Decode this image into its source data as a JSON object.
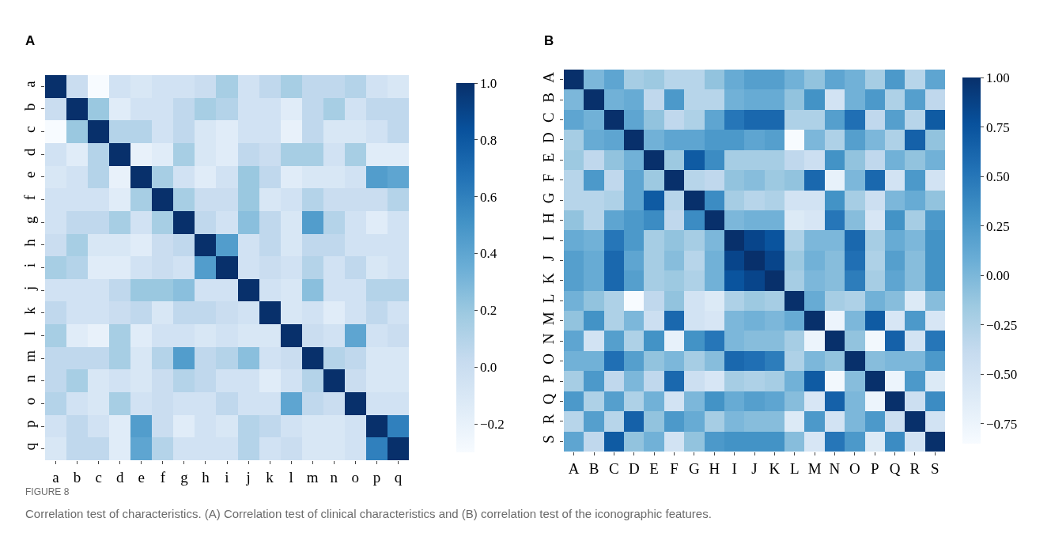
{
  "chart_data": [
    {
      "type": "heatmap",
      "title": "A",
      "categories": [
        "a",
        "b",
        "c",
        "d",
        "e",
        "f",
        "g",
        "h",
        "i",
        "j",
        "k",
        "l",
        "m",
        "n",
        "o",
        "p",
        "q"
      ],
      "y_categories": [
        "a",
        "b",
        "c",
        "d",
        "e",
        "f",
        "g",
        "h",
        "i",
        "j",
        "k",
        "l",
        "m",
        "n",
        "o",
        "p",
        "q"
      ],
      "cells": [
        [
          1,
          0.0,
          -0.3,
          -0.05,
          -0.1,
          -0.05,
          -0.05,
          0.0,
          0.15,
          -0.05,
          0.05,
          0.15,
          0.05,
          0.05,
          0.1,
          -0.05,
          -0.1
        ],
        [
          0.0,
          1,
          0.2,
          -0.15,
          -0.05,
          -0.05,
          0.05,
          0.15,
          0.1,
          -0.05,
          -0.05,
          -0.15,
          0.05,
          0.15,
          -0.05,
          0.05,
          0.05
        ],
        [
          -0.3,
          0.2,
          1,
          0.1,
          0.1,
          -0.05,
          0.05,
          -0.1,
          -0.15,
          -0.05,
          -0.05,
          -0.2,
          0.05,
          -0.1,
          -0.1,
          -0.05,
          0.05
        ],
        [
          -0.05,
          -0.15,
          0.1,
          1,
          -0.2,
          -0.15,
          0.15,
          -0.1,
          -0.15,
          0.05,
          0.0,
          0.15,
          0.15,
          -0.05,
          0.15,
          -0.15,
          -0.15
        ],
        [
          -0.1,
          -0.05,
          0.1,
          -0.2,
          1,
          0.15,
          -0.05,
          -0.15,
          -0.05,
          0.2,
          0.05,
          -0.15,
          -0.1,
          -0.1,
          -0.05,
          0.45,
          0.4
        ],
        [
          -0.05,
          -0.05,
          -0.05,
          -0.15,
          0.15,
          1,
          0.15,
          0.0,
          0.0,
          0.2,
          -0.1,
          -0.05,
          0.1,
          0.0,
          0.0,
          0.0,
          0.1
        ],
        [
          -0.05,
          0.05,
          0.05,
          0.15,
          -0.05,
          0.15,
          1,
          0.05,
          -0.05,
          0.25,
          0.05,
          -0.1,
          0.45,
          0.1,
          -0.05,
          -0.15,
          -0.05
        ],
        [
          0.0,
          0.15,
          -0.1,
          -0.1,
          -0.15,
          0.0,
          0.05,
          1,
          0.45,
          -0.05,
          0.05,
          -0.1,
          0.05,
          0.05,
          -0.05,
          -0.05,
          -0.05
        ],
        [
          0.15,
          0.1,
          -0.15,
          -0.15,
          -0.05,
          0.0,
          -0.05,
          0.45,
          1,
          -0.05,
          0.0,
          -0.05,
          0.1,
          -0.05,
          0.05,
          -0.1,
          -0.05
        ],
        [
          -0.05,
          -0.05,
          -0.05,
          0.05,
          0.2,
          0.2,
          0.25,
          -0.05,
          -0.05,
          1,
          -0.05,
          -0.1,
          0.25,
          -0.05,
          -0.05,
          0.1,
          0.1
        ],
        [
          0.05,
          -0.05,
          -0.05,
          0.0,
          0.05,
          -0.1,
          0.05,
          0.05,
          0.0,
          -0.05,
          1,
          -0.1,
          -0.05,
          -0.15,
          -0.05,
          0.05,
          -0.05
        ],
        [
          0.15,
          -0.15,
          -0.2,
          0.15,
          -0.15,
          -0.05,
          -0.05,
          -0.1,
          -0.05,
          -0.1,
          -0.1,
          1,
          0.0,
          -0.05,
          0.4,
          -0.05,
          0.0
        ],
        [
          0.05,
          0.05,
          0.05,
          0.15,
          -0.1,
          0.1,
          0.45,
          0.05,
          0.1,
          0.25,
          -0.05,
          0.0,
          1,
          0.1,
          0.05,
          -0.1,
          -0.1
        ],
        [
          0.05,
          0.15,
          -0.1,
          -0.05,
          -0.1,
          0.0,
          0.1,
          0.05,
          -0.05,
          -0.05,
          -0.15,
          -0.05,
          0.1,
          1,
          0.0,
          -0.1,
          -0.1
        ],
        [
          0.1,
          -0.05,
          -0.1,
          0.15,
          -0.05,
          0.0,
          -0.05,
          -0.05,
          0.05,
          -0.05,
          -0.05,
          0.4,
          0.05,
          0.0,
          1,
          -0.05,
          -0.05
        ],
        [
          -0.05,
          0.05,
          -0.05,
          -0.15,
          0.45,
          0.0,
          -0.15,
          -0.05,
          -0.1,
          0.1,
          0.05,
          -0.05,
          -0.1,
          -0.1,
          -0.05,
          1,
          0.6
        ],
        [
          -0.1,
          0.05,
          0.05,
          -0.15,
          0.4,
          0.1,
          -0.05,
          -0.05,
          -0.05,
          0.1,
          -0.05,
          0.0,
          -0.1,
          -0.1,
          -0.05,
          0.6,
          1
        ]
      ],
      "clim": [
        -0.3,
        1.0
      ],
      "cticks": [
        {
          "value": -0.2,
          "label": "−0.2"
        },
        {
          "value": 0.0,
          "label": "0.0"
        },
        {
          "value": 0.2,
          "label": "0.2"
        },
        {
          "value": 0.4,
          "label": "0.4"
        },
        {
          "value": 0.6,
          "label": "0.6"
        },
        {
          "value": 0.8,
          "label": "0.8"
        },
        {
          "value": 1.0,
          "label": "1.0"
        }
      ],
      "annotations": [
        "FIGURE 8",
        "Correlation test of characteristics. (A) Correlation test of clinical characteristics and (B) correlation test of the iconographic features."
      ]
    },
    {
      "type": "heatmap",
      "title": "B",
      "categories": [
        "A",
        "B",
        "C",
        "D",
        "E",
        "F",
        "G",
        "H",
        "I",
        "J",
        "K",
        "L",
        "M",
        "N",
        "O",
        "P",
        "Q",
        "R",
        "S"
      ],
      "y_categories": [
        "A",
        "B",
        "C",
        "D",
        "E",
        "F",
        "G",
        "H",
        "I",
        "J",
        "K",
        "L",
        "M",
        "N",
        "O",
        "P",
        "Q",
        "R",
        "S"
      ],
      "cells": [
        [
          1,
          0.0,
          0.15,
          -0.2,
          -0.15,
          -0.3,
          -0.3,
          -0.1,
          0.1,
          0.2,
          0.2,
          0.05,
          -0.1,
          0.15,
          0.05,
          -0.2,
          0.25,
          -0.3,
          0.15
        ],
        [
          0.0,
          1,
          0.05,
          0.1,
          -0.35,
          0.25,
          -0.3,
          -0.3,
          0.05,
          0.1,
          0.1,
          -0.1,
          0.3,
          -0.5,
          0.05,
          0.25,
          -0.25,
          0.2,
          -0.35
        ],
        [
          0.15,
          0.05,
          1,
          0.15,
          -0.1,
          -0.35,
          -0.25,
          0.15,
          0.5,
          0.6,
          0.6,
          -0.25,
          -0.25,
          0.2,
          0.55,
          -0.35,
          0.2,
          -0.3,
          0.7
        ],
        [
          -0.2,
          0.1,
          0.15,
          1,
          0.05,
          0.15,
          0.15,
          0.25,
          0.25,
          0.15,
          0.2,
          -0.85,
          0.0,
          -0.25,
          0.2,
          0.0,
          -0.25,
          0.65,
          -0.1
        ],
        [
          -0.15,
          -0.35,
          -0.1,
          0.05,
          1,
          -0.15,
          0.7,
          0.35,
          -0.2,
          -0.2,
          -0.2,
          -0.35,
          -0.45,
          0.3,
          -0.1,
          -0.35,
          0.05,
          -0.1,
          0.05
        ],
        [
          -0.3,
          0.25,
          -0.35,
          0.15,
          -0.15,
          1,
          -0.3,
          -0.35,
          -0.1,
          -0.05,
          -0.15,
          -0.1,
          0.6,
          -0.7,
          0.0,
          0.6,
          -0.5,
          0.25,
          -0.5
        ],
        [
          -0.3,
          -0.3,
          -0.25,
          0.15,
          0.7,
          -0.3,
          1,
          0.35,
          -0.2,
          -0.3,
          -0.25,
          -0.5,
          -0.5,
          0.3,
          -0.2,
          -0.45,
          0.0,
          0.1,
          -0.1
        ],
        [
          -0.1,
          -0.3,
          0.15,
          0.25,
          0.35,
          -0.35,
          0.35,
          1,
          0.0,
          0.05,
          0.05,
          -0.6,
          -0.55,
          0.5,
          -0.05,
          -0.55,
          0.3,
          -0.2,
          0.25
        ],
        [
          0.1,
          0.05,
          0.5,
          0.25,
          -0.2,
          -0.1,
          -0.2,
          0.0,
          1,
          0.85,
          0.75,
          -0.25,
          0.0,
          0.0,
          0.6,
          -0.2,
          0.1,
          0.0,
          0.3
        ],
        [
          0.2,
          0.1,
          0.6,
          0.15,
          -0.2,
          -0.05,
          -0.3,
          0.05,
          0.85,
          1,
          0.85,
          -0.15,
          0.05,
          -0.05,
          0.55,
          -0.25,
          0.2,
          -0.05,
          0.3
        ],
        [
          0.2,
          0.1,
          0.6,
          0.2,
          -0.2,
          -0.15,
          -0.25,
          0.05,
          0.75,
          0.85,
          1,
          -0.2,
          0.0,
          -0.05,
          0.45,
          -0.2,
          0.15,
          -0.05,
          0.3
        ],
        [
          0.05,
          -0.1,
          -0.25,
          -0.85,
          -0.35,
          -0.1,
          -0.5,
          -0.6,
          -0.25,
          -0.15,
          -0.2,
          1,
          0.1,
          -0.2,
          -0.25,
          0.05,
          -0.05,
          -0.6,
          -0.05
        ],
        [
          -0.1,
          0.3,
          -0.25,
          0.0,
          -0.45,
          0.6,
          -0.5,
          -0.55,
          0.0,
          0.05,
          0.0,
          0.1,
          1,
          -0.75,
          0.0,
          0.7,
          -0.55,
          0.25,
          -0.55
        ],
        [
          0.15,
          -0.5,
          0.2,
          -0.25,
          0.3,
          -0.7,
          0.3,
          0.5,
          0.0,
          -0.05,
          -0.05,
          -0.2,
          -0.75,
          1,
          -0.1,
          -0.8,
          0.65,
          -0.5,
          0.5
        ],
        [
          0.05,
          0.05,
          0.55,
          0.2,
          -0.1,
          0.0,
          -0.2,
          -0.05,
          0.6,
          0.55,
          0.45,
          -0.25,
          0.0,
          -0.1,
          1,
          -0.05,
          0.0,
          0.0,
          0.25
        ],
        [
          -0.2,
          0.25,
          -0.35,
          0.0,
          -0.35,
          0.6,
          -0.45,
          -0.55,
          -0.2,
          -0.25,
          -0.2,
          0.05,
          0.7,
          -0.8,
          -0.05,
          1,
          -0.75,
          0.25,
          -0.6
        ],
        [
          0.25,
          -0.25,
          0.2,
          -0.25,
          0.05,
          -0.5,
          0.0,
          0.3,
          0.1,
          0.2,
          0.15,
          -0.05,
          -0.55,
          0.65,
          0.0,
          -0.75,
          1,
          -0.45,
          0.35
        ],
        [
          -0.3,
          0.2,
          -0.3,
          0.65,
          -0.1,
          0.25,
          0.1,
          -0.2,
          0.0,
          -0.05,
          -0.05,
          -0.6,
          0.25,
          -0.5,
          0.0,
          0.25,
          -0.45,
          1,
          -0.5
        ],
        [
          0.15,
          -0.35,
          0.7,
          -0.1,
          0.05,
          -0.5,
          -0.1,
          0.25,
          0.3,
          0.3,
          0.3,
          -0.05,
          -0.55,
          0.5,
          0.25,
          -0.6,
          0.35,
          -0.5,
          1
        ]
      ],
      "clim": [
        -0.85,
        1.0
      ],
      "cticks": [
        {
          "value": -0.75,
          "label": "−0.75"
        },
        {
          "value": -0.5,
          "label": "−0.50"
        },
        {
          "value": -0.25,
          "label": "−0.25"
        },
        {
          "value": 0.0,
          "label": "0.00"
        },
        {
          "value": 0.25,
          "label": "0.25"
        },
        {
          "value": 0.5,
          "label": "0.50"
        },
        {
          "value": 0.75,
          "label": "0.75"
        },
        {
          "value": 1.0,
          "label": "1.00"
        }
      ]
    }
  ]
}
